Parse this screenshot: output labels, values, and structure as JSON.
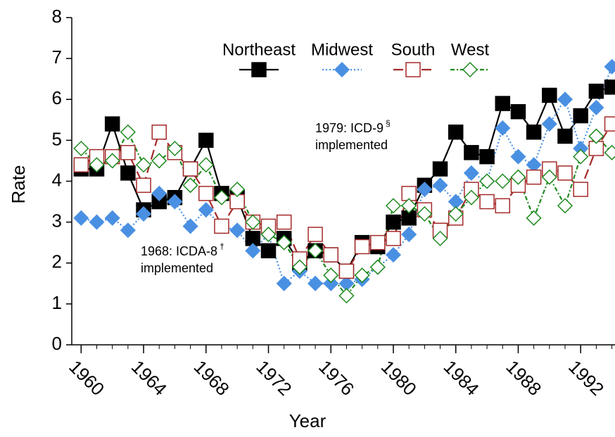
{
  "chart_data": {
    "type": "line",
    "x_label": "Year",
    "y_label": "Rate",
    "x": [
      1960,
      1961,
      1962,
      1963,
      1964,
      1965,
      1966,
      1967,
      1968,
      1969,
      1970,
      1971,
      1972,
      1973,
      1974,
      1975,
      1976,
      1977,
      1978,
      1979,
      1980,
      1981,
      1982,
      1983,
      1984,
      1985,
      1986,
      1987,
      1988,
      1989,
      1990,
      1991,
      1992,
      1993,
      1994
    ],
    "series": [
      {
        "name": "Northeast",
        "color": "#000000",
        "marker": "square-filled",
        "dash": "solid",
        "values": [
          4.3,
          4.3,
          5.4,
          4.2,
          3.3,
          3.5,
          3.6,
          4.3,
          5.0,
          3.7,
          3.6,
          2.6,
          2.3,
          2.6,
          2.0,
          2.3,
          2.2,
          1.8,
          2.5,
          2.4,
          3.0,
          3.1,
          3.9,
          4.3,
          5.2,
          4.7,
          4.6,
          5.9,
          5.7,
          5.2,
          6.1,
          5.1,
          5.6,
          6.2,
          6.3
        ]
      },
      {
        "name": "Midwest",
        "color": "#4a90e2",
        "marker": "diamond-filled",
        "dash": "dotted",
        "values": [
          3.1,
          3.0,
          3.1,
          2.8,
          3.2,
          3.7,
          3.5,
          2.9,
          3.3,
          2.9,
          2.8,
          2.3,
          2.7,
          1.5,
          1.8,
          1.5,
          1.5,
          1.5,
          1.6,
          1.9,
          2.2,
          2.7,
          3.8,
          3.9,
          3.5,
          4.2,
          4.0,
          5.3,
          4.6,
          4.4,
          5.4,
          6.0,
          4.8,
          5.8,
          6.8
        ]
      },
      {
        "name": "South",
        "color": "#a52a2a",
        "marker": "square-open",
        "dash": "dashed",
        "values": [
          4.4,
          4.6,
          4.6,
          4.7,
          3.9,
          5.2,
          4.7,
          4.3,
          3.7,
          2.9,
          3.5,
          3.0,
          2.9,
          3.0,
          2.1,
          2.7,
          2.2,
          1.8,
          2.4,
          2.5,
          2.6,
          3.7,
          3.3,
          2.8,
          3.1,
          3.8,
          3.5,
          3.4,
          3.9,
          4.1,
          4.3,
          4.2,
          3.8,
          4.8,
          5.4
        ]
      },
      {
        "name": "West",
        "color": "#1e8a1e",
        "marker": "diamond-open",
        "dash": "dashdot",
        "values": [
          4.8,
          4.4,
          4.5,
          5.2,
          4.4,
          4.5,
          4.8,
          3.9,
          4.4,
          3.6,
          3.8,
          3.0,
          2.7,
          2.5,
          1.9,
          2.3,
          1.7,
          1.2,
          1.7,
          1.9,
          3.4,
          3.4,
          3.2,
          2.6,
          3.2,
          3.6,
          4.0,
          4.0,
          4.1,
          3.1,
          4.1,
          3.4,
          4.6,
          5.1,
          4.7
        ]
      }
    ],
    "xlim": [
      1959.4,
      1994.2
    ],
    "xticks": [
      1960,
      1964,
      1968,
      1972,
      1976,
      1980,
      1984,
      1988,
      1992
    ],
    "ylim": [
      0,
      8
    ],
    "yticks": [
      0,
      1,
      2,
      3,
      4,
      5,
      6,
      7,
      8
    ],
    "grid": false,
    "legend": "top",
    "annotations": [
      {
        "lines": [
          "1979: ICD-9",
          "implemented"
        ],
        "mark": "§"
      },
      {
        "lines": [
          "1968: ICDA-8",
          "implemented"
        ],
        "mark": "†"
      }
    ]
  }
}
